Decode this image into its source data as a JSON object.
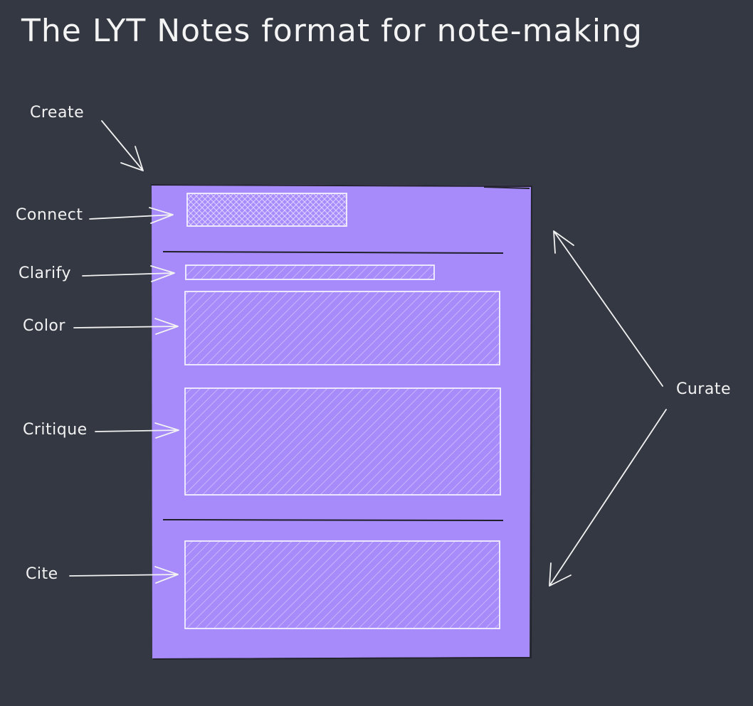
{
  "title": "The LYT Notes format for note-making",
  "labels": {
    "create": "Create",
    "connect": "Connect",
    "clarify": "Clarify",
    "color": "Color",
    "critique": "Critique",
    "cite": "Cite",
    "curate": "Curate"
  },
  "colors": {
    "background": "#343842",
    "note": "#a78bfa",
    "ink": "#f2f2f2",
    "divider": "#1f1f2a"
  }
}
